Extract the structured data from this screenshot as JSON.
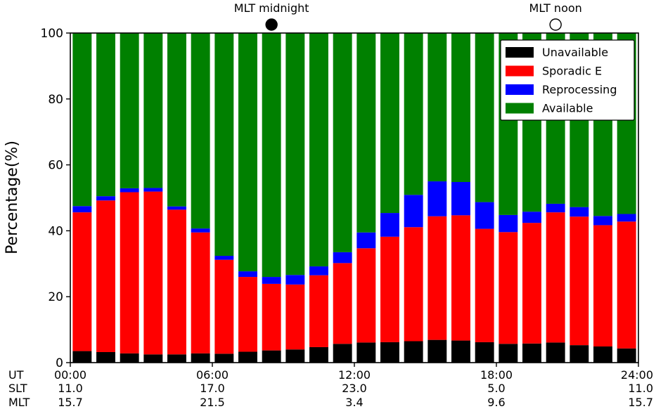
{
  "chart_data": {
    "type": "bar",
    "stacked": true,
    "ylabel": "Percentage(%)",
    "ylim": [
      0,
      100
    ],
    "yticks": [
      0,
      20,
      40,
      60,
      80,
      100
    ],
    "xlim": [
      0,
      24
    ],
    "bar_centers": [
      0.5,
      1.5,
      2.5,
      3.5,
      4.5,
      5.5,
      6.5,
      7.5,
      8.5,
      9.5,
      10.5,
      11.5,
      12.5,
      13.5,
      14.5,
      15.5,
      16.5,
      17.5,
      18.5,
      19.5,
      20.5,
      21.5,
      22.5,
      23.5
    ],
    "series": [
      {
        "name": "Unavailable",
        "color": "#000000",
        "values": [
          3.5,
          3.2,
          2.8,
          2.5,
          2.5,
          2.8,
          2.7,
          3.3,
          3.7,
          4.0,
          4.7,
          5.7,
          6.1,
          6.2,
          6.5,
          6.9,
          6.7,
          6.2,
          5.7,
          5.8,
          6.1,
          5.3,
          4.9,
          4.3
        ]
      },
      {
        "name": "Sporadic E",
        "color": "#ff0000",
        "values": [
          42.1,
          46.0,
          48.9,
          49.4,
          43.9,
          36.7,
          28.5,
          22.7,
          20.2,
          19.7,
          21.8,
          24.5,
          28.6,
          32.0,
          34.6,
          37.5,
          38.0,
          34.4,
          33.9,
          36.6,
          39.5,
          39.0,
          36.8,
          38.5
        ]
      },
      {
        "name": "Reprocessing",
        "color": "#0000ff",
        "values": [
          1.9,
          1.3,
          1.2,
          1.1,
          1.0,
          1.2,
          1.2,
          1.7,
          2.1,
          2.9,
          2.7,
          3.3,
          4.8,
          7.2,
          9.8,
          10.6,
          10.1,
          8.1,
          5.2,
          3.4,
          2.6,
          2.9,
          2.8,
          2.3
        ]
      },
      {
        "name": "Available",
        "color": "#008000",
        "values": [
          52.5,
          49.5,
          47.1,
          47.0,
          52.6,
          59.3,
          67.6,
          72.3,
          74.0,
          73.4,
          70.8,
          66.5,
          60.5,
          54.6,
          49.1,
          45.0,
          45.2,
          51.3,
          55.2,
          54.2,
          51.8,
          52.8,
          55.5,
          54.9
        ]
      }
    ],
    "x_tick_rows": [
      {
        "label": "UT",
        "values": [
          "00:00",
          "06:00",
          "12:00",
          "18:00",
          "24:00"
        ]
      },
      {
        "label": "SLT",
        "values": [
          "11.0",
          "17.0",
          "23.0",
          "5.0",
          "11.0"
        ]
      },
      {
        "label": "MLT",
        "values": [
          "15.7",
          "21.5",
          "3.4",
          "9.6",
          "15.7"
        ]
      }
    ],
    "x_tick_positions": [
      0,
      6,
      12,
      18,
      24
    ],
    "markers": [
      {
        "label": "MLT midnight",
        "x": 8.5,
        "filled": true
      },
      {
        "label": "MLT noon",
        "x": 20.5,
        "filled": false
      }
    ],
    "legend_position": "top-right",
    "grid": false
  }
}
